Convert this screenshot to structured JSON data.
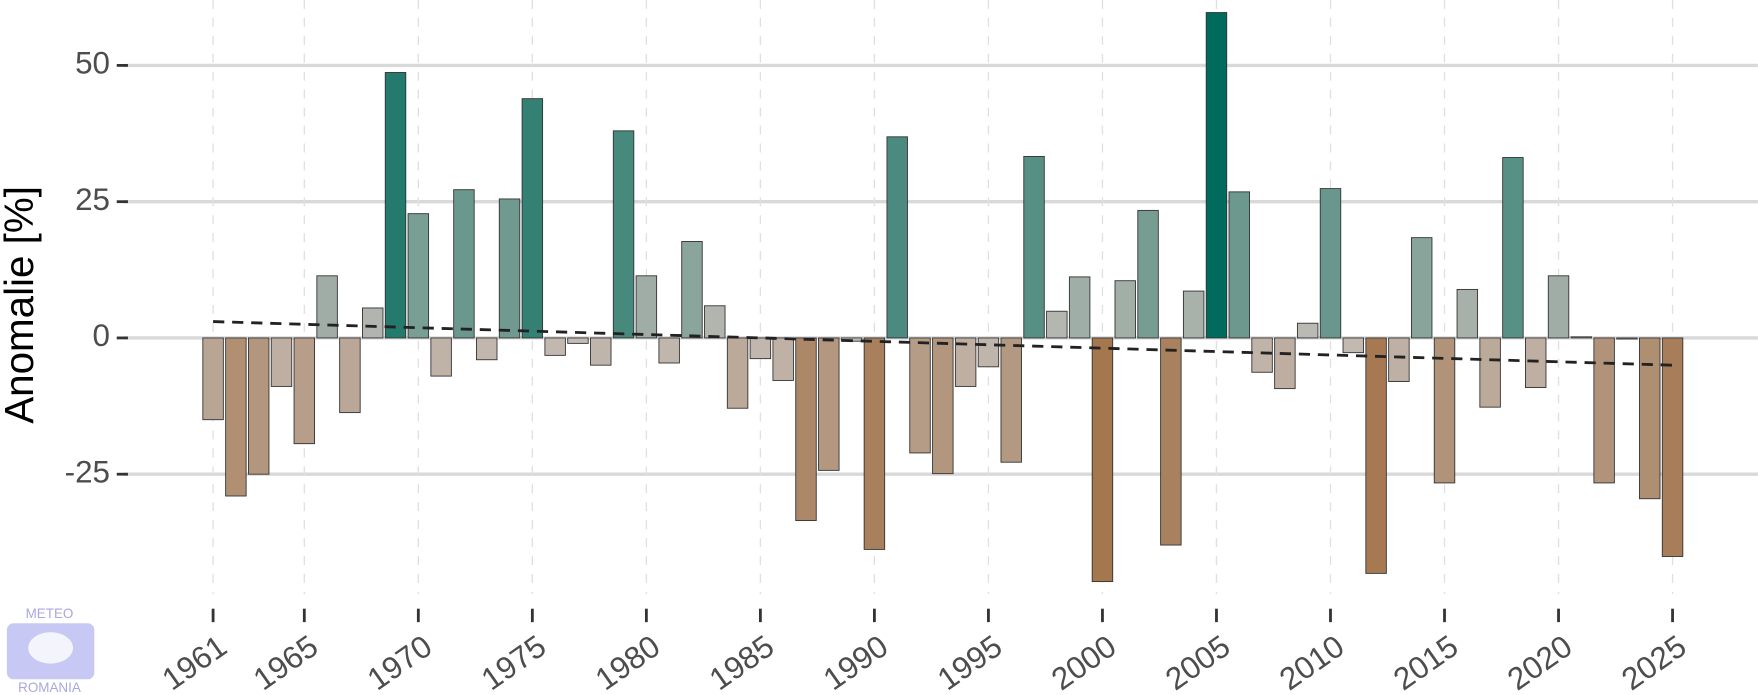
{
  "chart_data": {
    "type": "bar",
    "y_label": "Anomalie [%]",
    "x": [
      1961,
      1962,
      1963,
      1964,
      1965,
      1966,
      1967,
      1968,
      1969,
      1970,
      1971,
      1972,
      1973,
      1974,
      1975,
      1976,
      1977,
      1978,
      1979,
      1980,
      1981,
      1982,
      1983,
      1984,
      1985,
      1986,
      1987,
      1988,
      1989,
      1990,
      1991,
      1992,
      1993,
      1994,
      1995,
      1996,
      1997,
      1998,
      1999,
      2000,
      2001,
      2002,
      2003,
      2004,
      2005,
      2006,
      2007,
      2008,
      2009,
      2010,
      2011,
      2012,
      2013,
      2014,
      2015,
      2016,
      2017,
      2018,
      2019,
      2020,
      2021,
      2022,
      2023,
      2024,
      2025
    ],
    "values": [
      -15,
      -29,
      -25,
      -8.9,
      -19.4,
      11.4,
      -13.7,
      5.5,
      48.7,
      22.8,
      -7,
      27.2,
      -4,
      25.5,
      43.9,
      -3.2,
      -1,
      -5,
      38,
      11.4,
      -4.6,
      17.7,
      5.9,
      -12.9,
      -3.8,
      -7.8,
      -33.5,
      -24.3,
      -0.6,
      -38.8,
      36.9,
      -21.1,
      -24.9,
      -8.9,
      -5.3,
      -22.8,
      33.3,
      4.9,
      11.2,
      -44.7,
      10.5,
      23.4,
      -38,
      8.6,
      59.7,
      26.8,
      -6.3,
      -9.3,
      2.7,
      27.4,
      -2.7,
      -43.2,
      -8,
      18.4,
      -26.6,
      8.9,
      -12.7,
      33.1,
      -9.1,
      11.4,
      0.2,
      -26.6,
      -0.2,
      -29.5,
      -40.1
    ],
    "color_scale": {
      "negative": "#9a5f2c",
      "neutral": "#c4bdb7",
      "positive": "#006b5c"
    },
    "trend": {
      "x": [
        1961,
        2025
      ],
      "values": [
        3,
        -5
      ],
      "color": "#222222"
    },
    "xlim": [
      1957.07,
      2028.74
    ],
    "xticks": [
      1961,
      1965,
      1970,
      1975,
      1980,
      1985,
      1990,
      1995,
      2000,
      2005,
      2010,
      2015,
      2020,
      2025
    ],
    "ylim": [
      -47,
      62
    ],
    "yticks": [
      -25,
      0,
      25,
      50
    ],
    "grid": true
  },
  "logo": {
    "top": "METEO",
    "bottom": "ROMANIA"
  }
}
